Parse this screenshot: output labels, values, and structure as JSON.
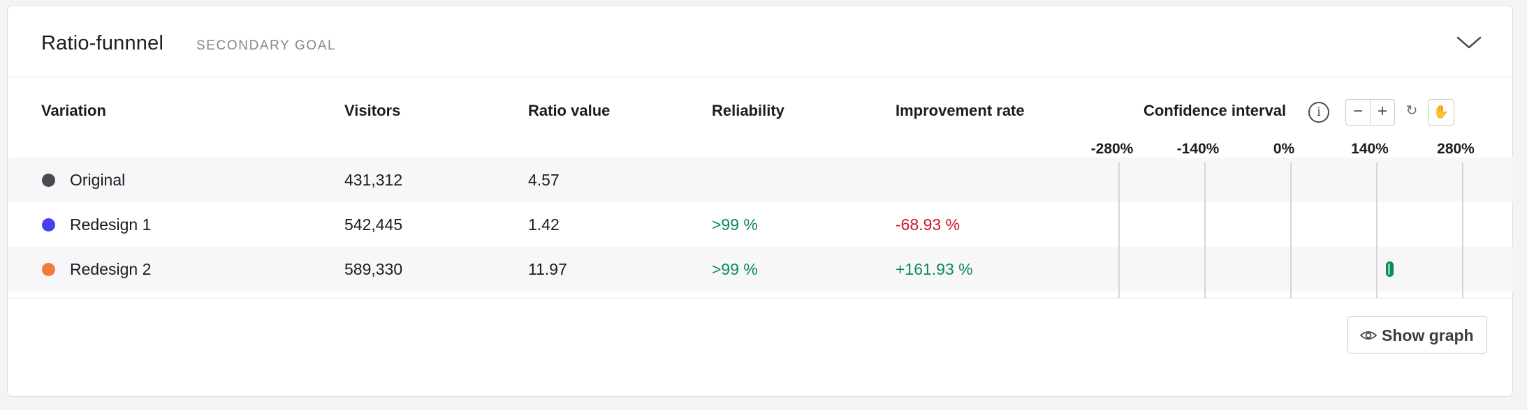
{
  "goal": {
    "title": "Ratio-funnnel",
    "type_label": "SECONDARY GOAL"
  },
  "table": {
    "headers": {
      "variation": "Variation",
      "visitors": "Visitors",
      "ratio_value": "Ratio value",
      "reliability": "Reliability",
      "improvement_rate": "Improvement rate",
      "confidence_interval": "Confidence interval"
    },
    "ci_ticks": [
      "-280%",
      "-140%",
      "0%",
      "140%",
      "280%"
    ],
    "rows": [
      {
        "name": "Original",
        "color": "#4a4a50",
        "visitors": "431,312",
        "ratio_value": "4.57",
        "reliability": "",
        "improvement_rate": ""
      },
      {
        "name": "Redesign 1",
        "color": "#4a3ff0",
        "visitors": "542,445",
        "ratio_value": "1.42",
        "reliability": ">99 %",
        "improvement_rate": "-68.93 %"
      },
      {
        "name": "Redesign 2",
        "color": "#f5793b",
        "visitors": "589,330",
        "ratio_value": "11.97",
        "reliability": ">99 %",
        "improvement_rate": "+161.93 %"
      }
    ]
  },
  "confidence_interval": {
    "axis_min_percent": -280,
    "axis_max_percent": 280,
    "intervals": [
      {
        "variation": "Redesign 2",
        "low_percent": 155,
        "high_percent": 168
      }
    ]
  },
  "toolbar": {
    "info_glyph": "i",
    "zoom_out_glyph": "−",
    "zoom_in_glyph": "+",
    "reset_glyph": "↻",
    "pan_glyph": "✋"
  },
  "footer": {
    "show_graph_label": "Show graph"
  },
  "colors": {
    "positive": "#0b8a58",
    "negative": "#cf1628"
  }
}
